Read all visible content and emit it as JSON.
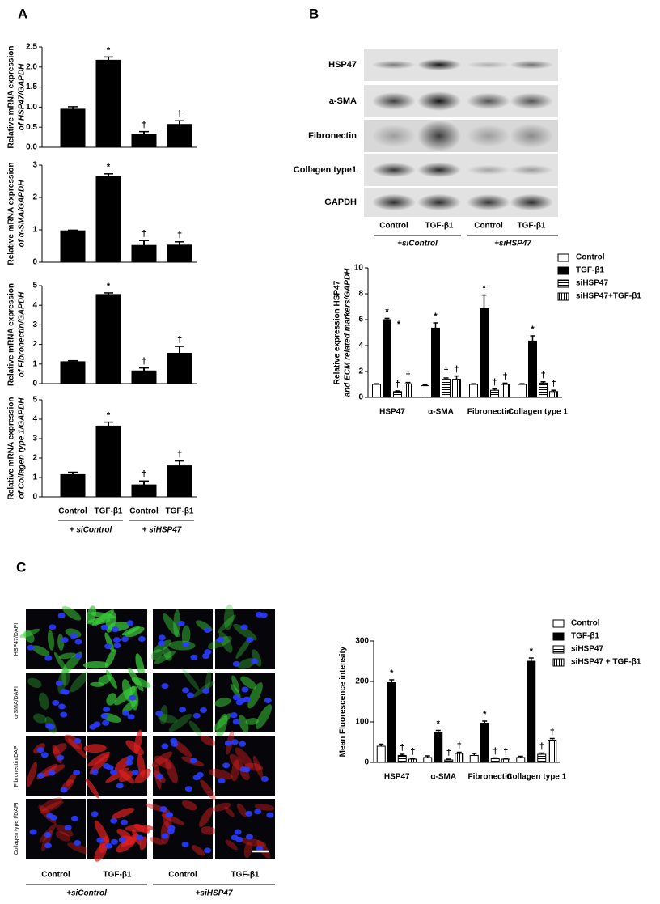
{
  "panels": {
    "a": "A",
    "b": "B",
    "c": "C"
  },
  "blot": {
    "rows": [
      "HSP47",
      "a-SMA",
      "Fibronectin",
      "Collagen type1",
      "GAPDH"
    ],
    "lanes": [
      "Control",
      "TGF-β1",
      "Control",
      "TGF-β1"
    ],
    "groups": [
      "+siControl",
      "+siHSP47"
    ]
  },
  "images": {
    "rows": [
      "HSP47/DAPI",
      "α-SMA/DAPI",
      "Fibronectin/DAPI",
      "Collagen type I/DAPI"
    ],
    "columns": [
      "Control",
      "TGF-β1",
      "Control",
      "TGF-β1"
    ],
    "groups": [
      "+siControl",
      "+siHSP47"
    ]
  },
  "chart_data": [
    {
      "type": "bar",
      "ylabel": [
        "Relative mRNA expression",
        "of HSP47/GAPDH"
      ],
      "ylim": [
        0,
        2.5
      ],
      "yticks": [
        {
          "value": 0,
          "label": "0.0"
        },
        0.5,
        {
          "value": 1,
          "label": "1.0"
        },
        1.5,
        {
          "value": 2,
          "label": "2.0"
        },
        2.5
      ],
      "series": [
        {
          "color": "#000000",
          "values": [
            0.95,
            2.17,
            0.32,
            0.57
          ],
          "errors": [
            0.06,
            0.08,
            0.07,
            0.09
          ],
          "markers": [
            null,
            "*",
            "†",
            "†"
          ]
        }
      ]
    },
    {
      "type": "bar",
      "ylabel": [
        "Relative mRNA expression",
        "of α-SMA/GAPDH"
      ],
      "ylim": [
        0,
        3
      ],
      "yticks": [
        0,
        1,
        2,
        3
      ],
      "series": [
        {
          "color": "#000000",
          "values": [
            0.97,
            2.65,
            0.52,
            0.53
          ],
          "errors": [
            0.02,
            0.08,
            0.15,
            0.1
          ],
          "markers": [
            null,
            "*",
            "†",
            "†"
          ]
        }
      ]
    },
    {
      "type": "bar",
      "ylabel": [
        "Relative mRNA expression",
        "of Fibronectin/GAPDH"
      ],
      "ylim": [
        0,
        5
      ],
      "yticks": [
        0,
        1,
        2,
        3,
        4,
        5
      ],
      "series": [
        {
          "color": "#000000",
          "values": [
            1.12,
            4.55,
            0.65,
            1.55
          ],
          "errors": [
            0.05,
            0.08,
            0.15,
            0.35
          ],
          "markers": [
            null,
            "*",
            "†",
            "†"
          ]
        }
      ]
    },
    {
      "type": "bar",
      "ylabel": [
        "Relative mRNA expression",
        "of Collagen type 1/GAPDH"
      ],
      "ylim": [
        0,
        5
      ],
      "yticks": [
        0,
        1,
        2,
        3,
        4,
        5
      ],
      "categories": [
        "Control",
        "TGF-β1",
        "Control",
        "TGF-β1"
      ],
      "groups": [
        "+ siControl",
        "+ siHSP47"
      ],
      "series": [
        {
          "color": "#000000",
          "values": [
            1.15,
            3.65,
            0.62,
            1.6
          ],
          "errors": [
            0.12,
            0.2,
            0.2,
            0.25
          ],
          "markers": [
            null,
            "*",
            "†",
            "†"
          ]
        }
      ]
    },
    {
      "type": "grouped_bar",
      "ylabel": [
        "Relative expression HSP47",
        "and ECM related markers/GAPDH"
      ],
      "categories": [
        "HSP47",
        "α-SMA",
        "Fibronectin",
        "Collagen type 1"
      ],
      "ylim": [
        0,
        10
      ],
      "yticks": [
        0,
        2,
        4,
        6,
        8,
        10
      ],
      "legend": "right",
      "annotations": [
        "*"
      ],
      "series": [
        {
          "name": "Control",
          "color": "#ffffff",
          "hatch": "none",
          "values": [
            1,
            0.9,
            1,
            1
          ],
          "errors": [
            0.05,
            0.05,
            0.05,
            0.05
          ],
          "markers": [
            null,
            null,
            null,
            null
          ]
        },
        {
          "name": "TGF-β1",
          "color": "#000000",
          "hatch": "none",
          "values": [
            6.0,
            5.35,
            6.9,
            4.35
          ],
          "errors": [
            0.1,
            0.4,
            1.0,
            0.4
          ],
          "markers": [
            "*",
            "*",
            "*",
            "*"
          ]
        },
        {
          "name": "siHSP47",
          "color": "#ffffff",
          "hatch": "horizontal",
          "values": [
            0.45,
            1.4,
            0.55,
            1.1
          ],
          "errors": [
            0.05,
            0.1,
            0.1,
            0.1
          ],
          "markers": [
            "†",
            "†",
            "†",
            "†"
          ]
        },
        {
          "name": "siHSP47+TGF-β1",
          "color": "#ffffff",
          "hatch": "vertical",
          "values": [
            1.05,
            1.4,
            1.0,
            0.45
          ],
          "errors": [
            0.1,
            0.25,
            0.1,
            0.1
          ],
          "markers": [
            "†",
            "†",
            "†",
            "†"
          ]
        }
      ]
    },
    {
      "type": "grouped_bar",
      "ylabel": [
        "Mean Fluorescence intensity"
      ],
      "categories": [
        "HSP47",
        "α-SMA",
        "Fibronectin",
        "Collagen type 1"
      ],
      "ylim": [
        0,
        300
      ],
      "yticks": [
        0,
        100,
        200,
        300
      ],
      "legend": "right",
      "series": [
        {
          "name": "Control",
          "color": "#ffffff",
          "hatch": "none",
          "values": [
            40,
            12,
            17,
            12
          ],
          "errors": [
            5,
            4,
            5,
            3
          ],
          "markers": [
            null,
            null,
            null,
            null
          ]
        },
        {
          "name": "TGF-β1",
          "color": "#000000",
          "hatch": "none",
          "values": [
            197,
            73,
            97,
            250
          ],
          "errors": [
            7,
            6,
            5,
            8
          ],
          "markers": [
            "*",
            "*",
            "*",
            "*"
          ]
        },
        {
          "name": "siHSP47",
          "color": "#ffffff",
          "hatch": "horizontal",
          "values": [
            17,
            6,
            9,
            20
          ],
          "errors": [
            3,
            2,
            2,
            3
          ],
          "markers": [
            "†",
            "†",
            "†",
            "†"
          ]
        },
        {
          "name": "siHSP47 + TGF-β1",
          "color": "#ffffff",
          "hatch": "vertical",
          "values": [
            8,
            22,
            8,
            55
          ],
          "errors": [
            2,
            3,
            2,
            4
          ],
          "markers": [
            "†",
            "†",
            "†",
            "†"
          ]
        }
      ]
    }
  ]
}
